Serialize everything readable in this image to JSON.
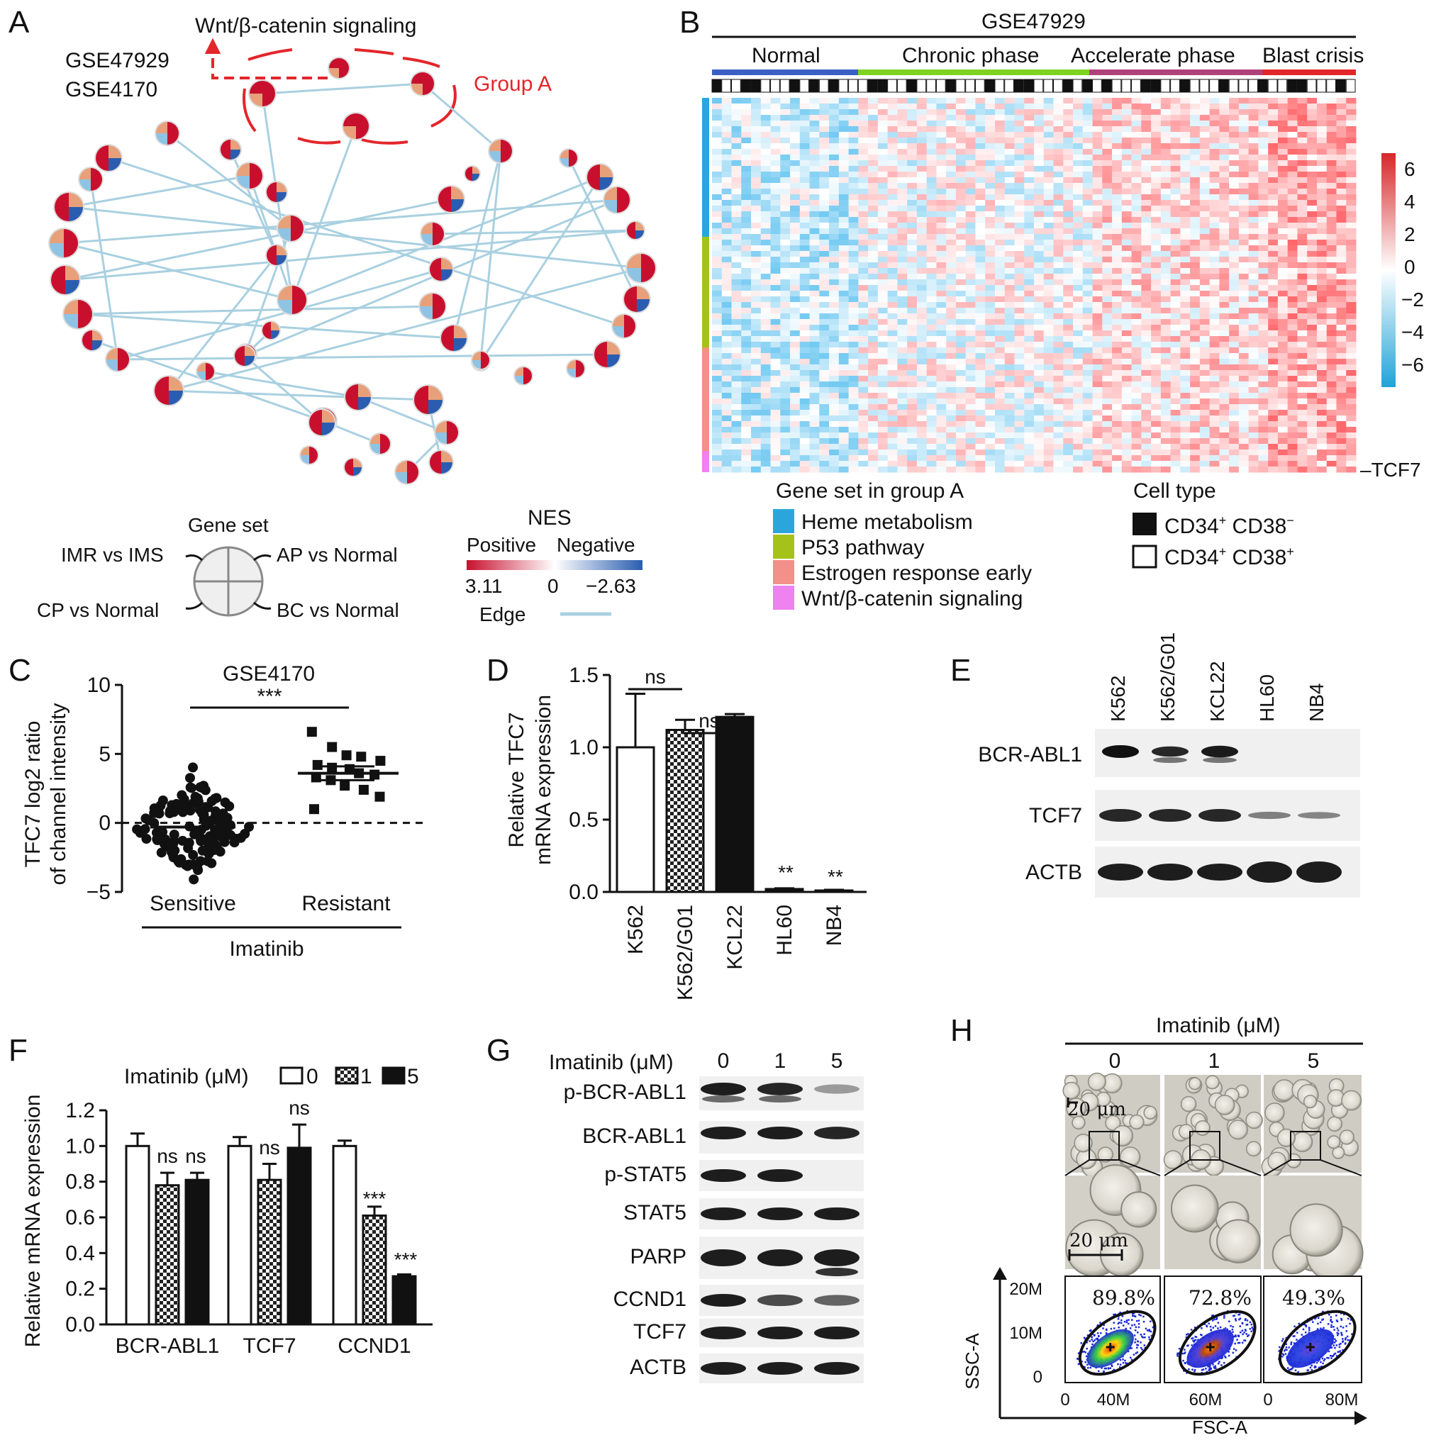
{
  "panels": {
    "A": "A",
    "B": "B",
    "C": "C",
    "D": "D",
    "E": "E",
    "F": "F",
    "G": "G",
    "H": "H"
  },
  "panel_a": {
    "datasets": [
      "GSE47929",
      "GSE4170"
    ],
    "pathway_label": "Wnt/β-catenin signaling",
    "group_label": "Group A",
    "legend": {
      "gene_set_title": "Gene set",
      "quadrants": [
        "IMR vs IMS",
        "AP vs Normal",
        "CP vs Normal",
        "BC vs Normal"
      ],
      "nes_title": "NES",
      "positive": "Positive",
      "negative": "Negative",
      "nes_max": "3.11",
      "nes_mid": "0",
      "nes_min": "−2.63",
      "edge_label": "Edge"
    },
    "colors": {
      "positive": "#c8102e",
      "negative": "#2a5db0",
      "light_pos": "#e8a07a",
      "light_neg": "#8fc3e3",
      "edge": "#a9d0e0"
    }
  },
  "panel_b": {
    "title": "GSE47929",
    "phases": [
      "Normal",
      "Chronic phase",
      "Accelerate phase",
      "Blast crisis"
    ],
    "phase_colors": [
      "#3b5fc4",
      "#7ed321",
      "#b0427a",
      "#e3262b"
    ],
    "gene_label": "–TCF7",
    "scale_ticks": [
      "6",
      "4",
      "2",
      "0",
      "−2",
      "−4",
      "−6"
    ],
    "gene_set_title": "Gene set in group A",
    "gene_sets": [
      {
        "name": "Heme metabolism",
        "color": "#2aa6dc"
      },
      {
        "name": "P53 pathway",
        "color": "#a5c21b"
      },
      {
        "name": "Estrogen response early",
        "color": "#f29089"
      },
      {
        "name": "Wnt/β-catenin signaling",
        "color": "#ee82ee"
      }
    ],
    "cell_type_title": "Cell type",
    "cell_types": [
      {
        "name": "CD34",
        "sup1": "+",
        "name2": " CD38",
        "sup2": "−",
        "fill": "#111111"
      },
      {
        "name": "CD34",
        "sup1": "+",
        "name2": " CD38",
        "sup2": "+",
        "fill": "#ffffff"
      }
    ]
  },
  "chart_data": [
    {
      "panel": "C",
      "type": "scatter",
      "title": "GSE4170",
      "ylabel": "TFC7 log2 ratio of channel intensity",
      "ylabel_lines": [
        "TFC7 log2 ratio",
        "of channel intensity"
      ],
      "categories": [
        "Sensitive",
        "Resistant"
      ],
      "group_label": "Imatinib",
      "ylim": [
        -5,
        10
      ],
      "yticks": [
        "10",
        "5",
        "0",
        "−5"
      ],
      "means": [
        -0.3,
        3.6
      ],
      "significance": "***",
      "resistant_values": [
        6.6,
        5.5,
        4.9,
        4.8,
        4.5,
        4.2,
        4.0,
        3.9,
        3.6,
        3.5,
        3.3,
        3.1,
        2.7,
        2.4,
        1.9,
        1.0
      ]
    },
    {
      "panel": "D",
      "type": "bar",
      "ylabel": "Relative TFC7 mRNA expression",
      "ylabel_lines": [
        "Relative TFC7",
        "mRNA expression"
      ],
      "categories": [
        "K562",
        "K562/G01",
        "KCL22",
        "HL60",
        "NB4"
      ],
      "values": [
        1.0,
        1.12,
        1.21,
        0.02,
        0.01
      ],
      "errors": [
        0.37,
        0.07,
        0.02,
        0.005,
        0.005
      ],
      "ylim": [
        0,
        1.5
      ],
      "yticks": [
        "1.5",
        "1.0",
        "0.5",
        "0.0"
      ],
      "annotations": [
        "ns",
        "ns",
        "**",
        "**"
      ]
    },
    {
      "panel": "F",
      "type": "bar",
      "ylabel": "Relative mRNA expression",
      "legend_title": "Imatinib (μM)",
      "categories": [
        "BCR-ABL1",
        "TCF7",
        "CCND1"
      ],
      "series": [
        {
          "name": "0",
          "values": [
            1.0,
            1.0,
            1.0
          ],
          "errors": [
            0.07,
            0.05,
            0.03
          ]
        },
        {
          "name": "1",
          "values": [
            0.78,
            0.81,
            0.61
          ],
          "errors": [
            0.07,
            0.09,
            0.05
          ]
        },
        {
          "name": "5",
          "values": [
            0.81,
            0.99,
            0.27
          ],
          "errors": [
            0.04,
            0.13,
            0.01
          ]
        }
      ],
      "ylim": [
        0,
        1.2
      ],
      "yticks": [
        "1.2",
        "1.0",
        "0.8",
        "0.6",
        "0.4",
        "0.2",
        "0.0"
      ],
      "annotations": [
        "ns",
        "ns",
        "ns",
        "ns",
        "***",
        "***"
      ]
    }
  ],
  "panel_e": {
    "lanes": [
      "K562",
      "K562/G01",
      "KCL22",
      "HL60",
      "NB4"
    ],
    "rows": [
      "BCR-ABL1",
      "TCF7",
      "ACTB"
    ]
  },
  "panel_g": {
    "treatment_label": "Imatinib (μM)",
    "doses": [
      "0",
      "1",
      "5"
    ],
    "rows": [
      "p-BCR-ABL1",
      "BCR-ABL1",
      "p-STAT5",
      "STAT5",
      "PARP",
      "CCND1",
      "TCF7",
      "ACTB"
    ]
  },
  "panel_h": {
    "title": "Imatinib (μM)",
    "doses": [
      "0",
      "1",
      "5"
    ],
    "scale_bar": "20 μm",
    "percentages": [
      "89.8%",
      "72.8%",
      "49.3%"
    ],
    "y_axis": "SSC-A",
    "x_axis": "FSC-A",
    "y_ticks": [
      "20M",
      "10M",
      "0"
    ],
    "x_ticks": [
      "0",
      "40M",
      "60M",
      "0",
      "80M"
    ]
  }
}
